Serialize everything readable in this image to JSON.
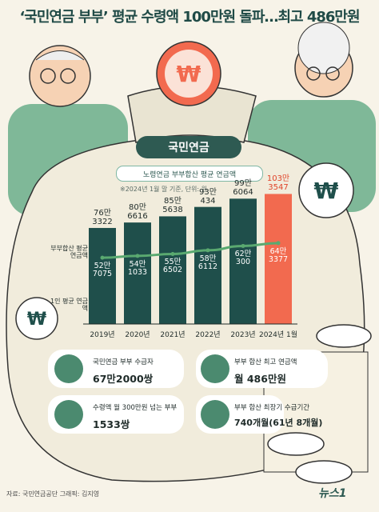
{
  "title": "‘국민연금 부부’ 평균 수령액 100만원 돌파…최고 486만원",
  "sack_label": "국민연금",
  "subtitle": "노령연금 부부합산 평균 연금액",
  "note": "※2024년 1월 말 기준, 단위: 원",
  "side_labels": {
    "couple": "부부합산 평균 연금액",
    "single": "1인 평균 연금액"
  },
  "colors": {
    "bar": "#1f4f4b",
    "bar_highlight": "#f26a4f",
    "line": "#5aa970",
    "accent_text": "#e0442a"
  },
  "chart_data": {
    "type": "bar",
    "categories": [
      "2019년",
      "2020년",
      "2021년",
      "2022년",
      "2023년",
      "2024년 1월"
    ],
    "bar_label_top": [
      "76만\n3322",
      "80만\n6616",
      "85만\n5638",
      "93만\n434",
      "99만\n6064",
      "103만\n3547"
    ],
    "line_label": [
      "52만\n7075",
      "54만\n1033",
      "55만\n6502",
      "58만\n6112",
      "62만\n300",
      "64만\n3377"
    ],
    "series": [
      {
        "name": "부부합산 평균 연금액",
        "values": [
          763322,
          806616,
          855638,
          930434,
          996064,
          1033547
        ]
      },
      {
        "name": "1인 평균 연금액",
        "values": [
          527075,
          541033,
          556502,
          586112,
          620300,
          643377
        ]
      }
    ],
    "ylim": [
      0,
      1100000
    ],
    "highlight_index": 5
  },
  "cards": [
    {
      "label": "국민연금 부부 수급자",
      "value": "67만2000쌍",
      "icon": "people-coin-icon"
    },
    {
      "label": "부부 합산 최고 연금액",
      "value": "월 486만원",
      "icon": "money-bag-icon"
    },
    {
      "label": "수령액 월 300만원 넘는 부부",
      "value": "1533쌍",
      "icon": "laptop-coin-icon"
    },
    {
      "label": "부부 합산 최장기 수급기간",
      "value": "740개월(61년 8개월)",
      "icon": "clock-coin-icon"
    }
  ],
  "footer": "자료: 국민연금공단  그래픽: 김지영",
  "logo": "뉴스1"
}
